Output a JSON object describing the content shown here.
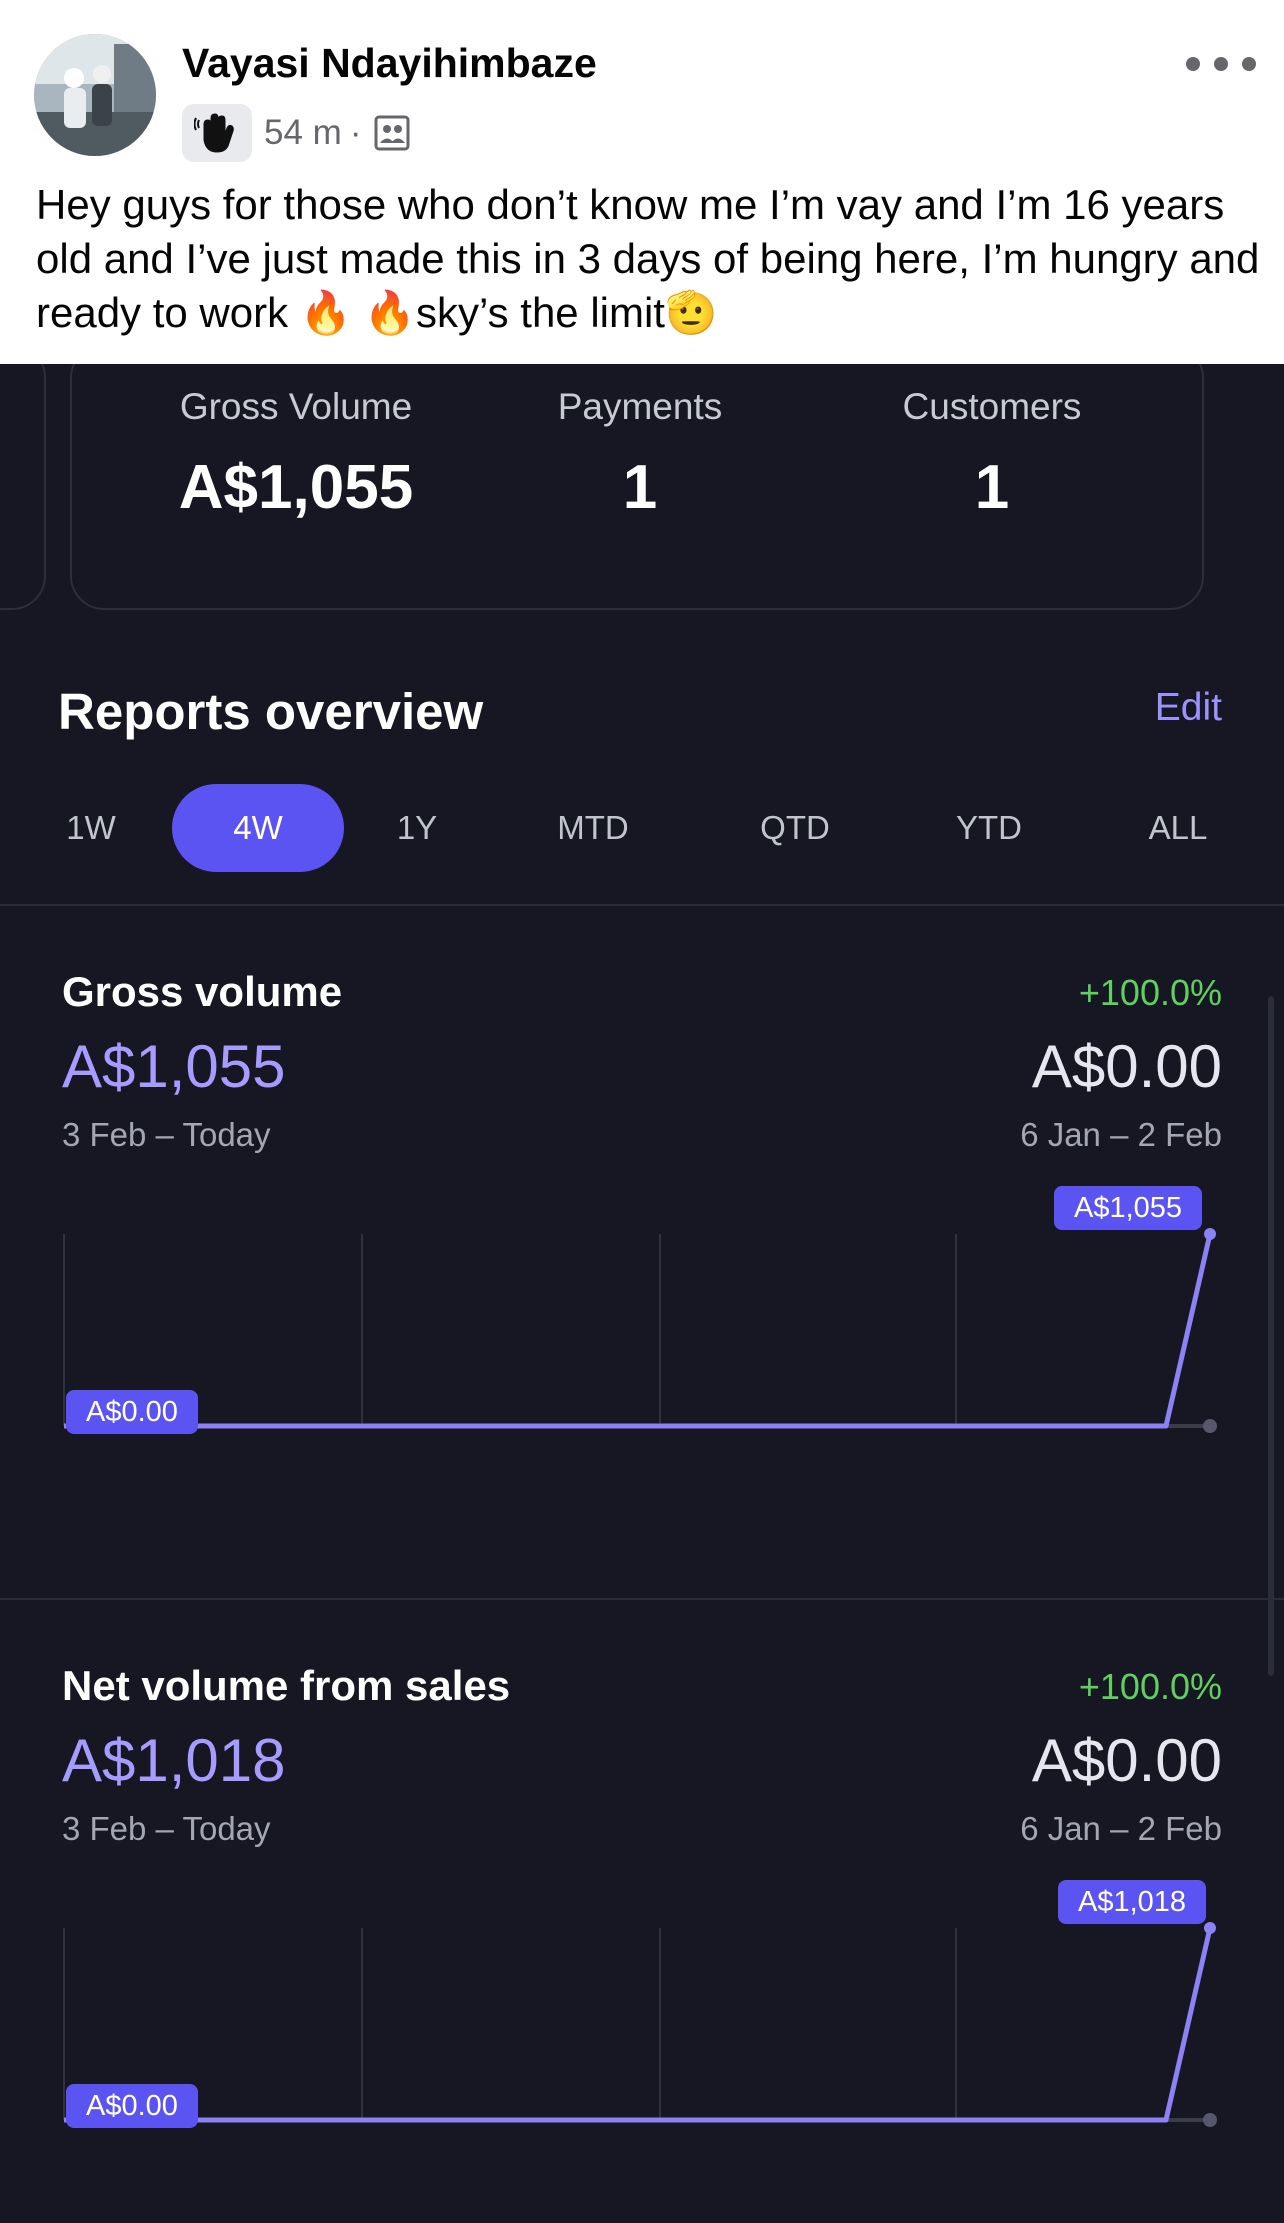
{
  "post": {
    "author": "Vayasi Ndayihimbaze",
    "time": "54 m",
    "separator": "·",
    "text": "Hey guys for those who don’t know me I’m vay and I’m 16 years old and I’ve just made this in 3 days of being here, I’m hungry and ready to work 🔥 🔥sky’s the limit🫡",
    "icons": {
      "badge": "hand-wave-icon",
      "audience": "friends-icon",
      "more": "more-options-icon"
    }
  },
  "summary": {
    "gross_volume_label": "Gross Volume",
    "gross_volume_value": "A$1,055",
    "payments_label": "Payments",
    "payments_value": "1",
    "customers_label": "Customers",
    "customers_value": "1"
  },
  "reports": {
    "title": "Reports overview",
    "edit_label": "Edit",
    "periods": [
      "1W",
      "4W",
      "1Y",
      "MTD",
      "QTD",
      "YTD",
      "ALL"
    ],
    "active_period": "4W"
  },
  "metrics": [
    {
      "title": "Gross volume",
      "value": "A$1,055",
      "range": "3 Feb – Today",
      "change": "+100.0%",
      "previous_value": "A$0.00",
      "previous_range": "6 Jan – 2 Feb",
      "start_label": "A$0.00",
      "end_label": "A$1,055"
    },
    {
      "title": "Net volume from sales",
      "value": "A$1,018",
      "range": "3 Feb – Today",
      "change": "+100.0%",
      "previous_value": "A$0.00",
      "previous_range": "6 Jan – 2 Feb",
      "start_label": "A$0.00",
      "end_label": "A$1,018"
    }
  ],
  "colors": {
    "background": "#161722",
    "accent": "#5c54f2",
    "accent_text": "#a59cff",
    "positive": "#5fd05f",
    "line": "#8a82f5"
  },
  "chart_data": [
    {
      "type": "line",
      "x": [
        "3 Feb",
        "",
        "",
        "",
        "Today"
      ],
      "series": [
        {
          "values": [
            0,
            0,
            0,
            0,
            1055
          ]
        }
      ],
      "ylim": [
        0,
        1055
      ],
      "grid": true
    },
    {
      "type": "line",
      "x": [
        "3 Feb",
        "",
        "",
        "",
        "Today"
      ],
      "series": [
        {
          "values": [
            0,
            0,
            0,
            0,
            1018
          ]
        }
      ],
      "ylim": [
        0,
        1018
      ],
      "grid": true
    }
  ]
}
